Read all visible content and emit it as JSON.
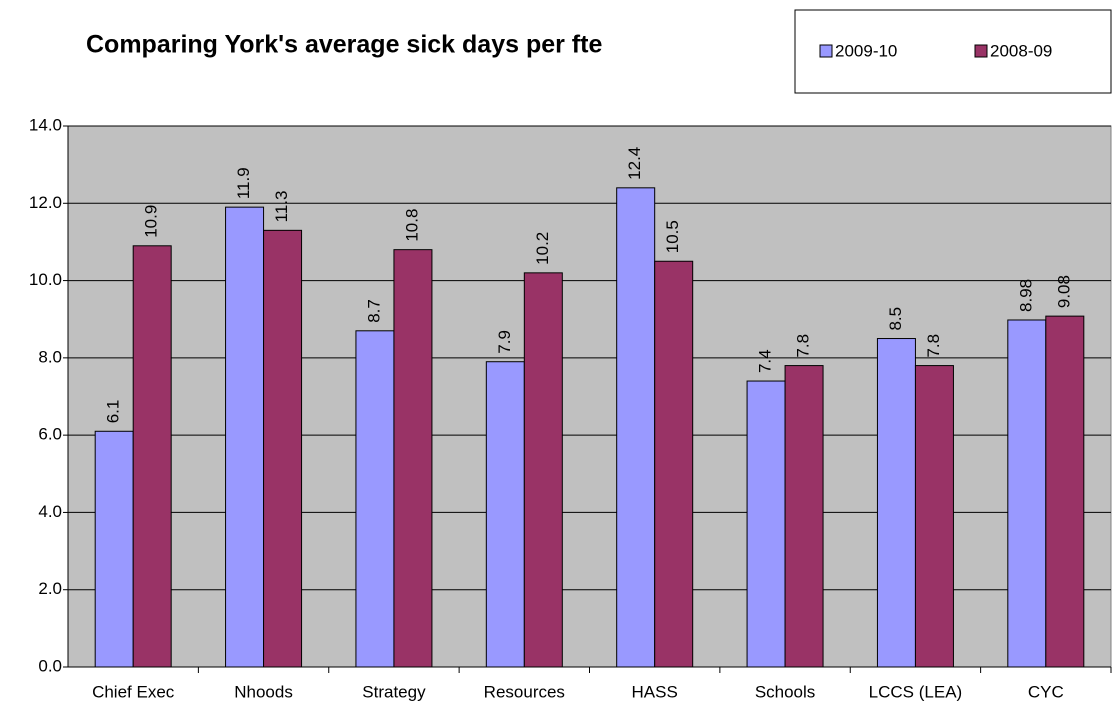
{
  "chart_data": {
    "type": "bar",
    "title": "Comparing York's average sick days per fte",
    "categories": [
      "Chief Exec",
      "Nhoods",
      "Strategy",
      "Resources",
      "HASS",
      "Schools",
      "LCCS (LEA)",
      "CYC"
    ],
    "series": [
      {
        "name": "2009-10",
        "color": "#9999ff",
        "values": [
          6.1,
          11.9,
          8.7,
          7.9,
          12.4,
          7.4,
          8.5,
          8.98
        ]
      },
      {
        "name": "2008-09",
        "color": "#993366",
        "values": [
          10.9,
          11.3,
          10.8,
          10.2,
          10.5,
          7.8,
          7.8,
          9.08
        ]
      }
    ],
    "ylim": [
      0,
      14
    ],
    "yticks": [
      {
        "value": 0,
        "label": "0.0"
      },
      {
        "value": 2,
        "label": "2.0"
      },
      {
        "value": 4,
        "label": "4.0"
      },
      {
        "value": 6,
        "label": "6.0"
      },
      {
        "value": 8,
        "label": "8.0"
      },
      {
        "value": 10,
        "label": "10.0"
      },
      {
        "value": 12,
        "label": "12.0"
      },
      {
        "value": 14,
        "label": "14.0"
      }
    ],
    "grid": true,
    "legend": "top-right"
  }
}
